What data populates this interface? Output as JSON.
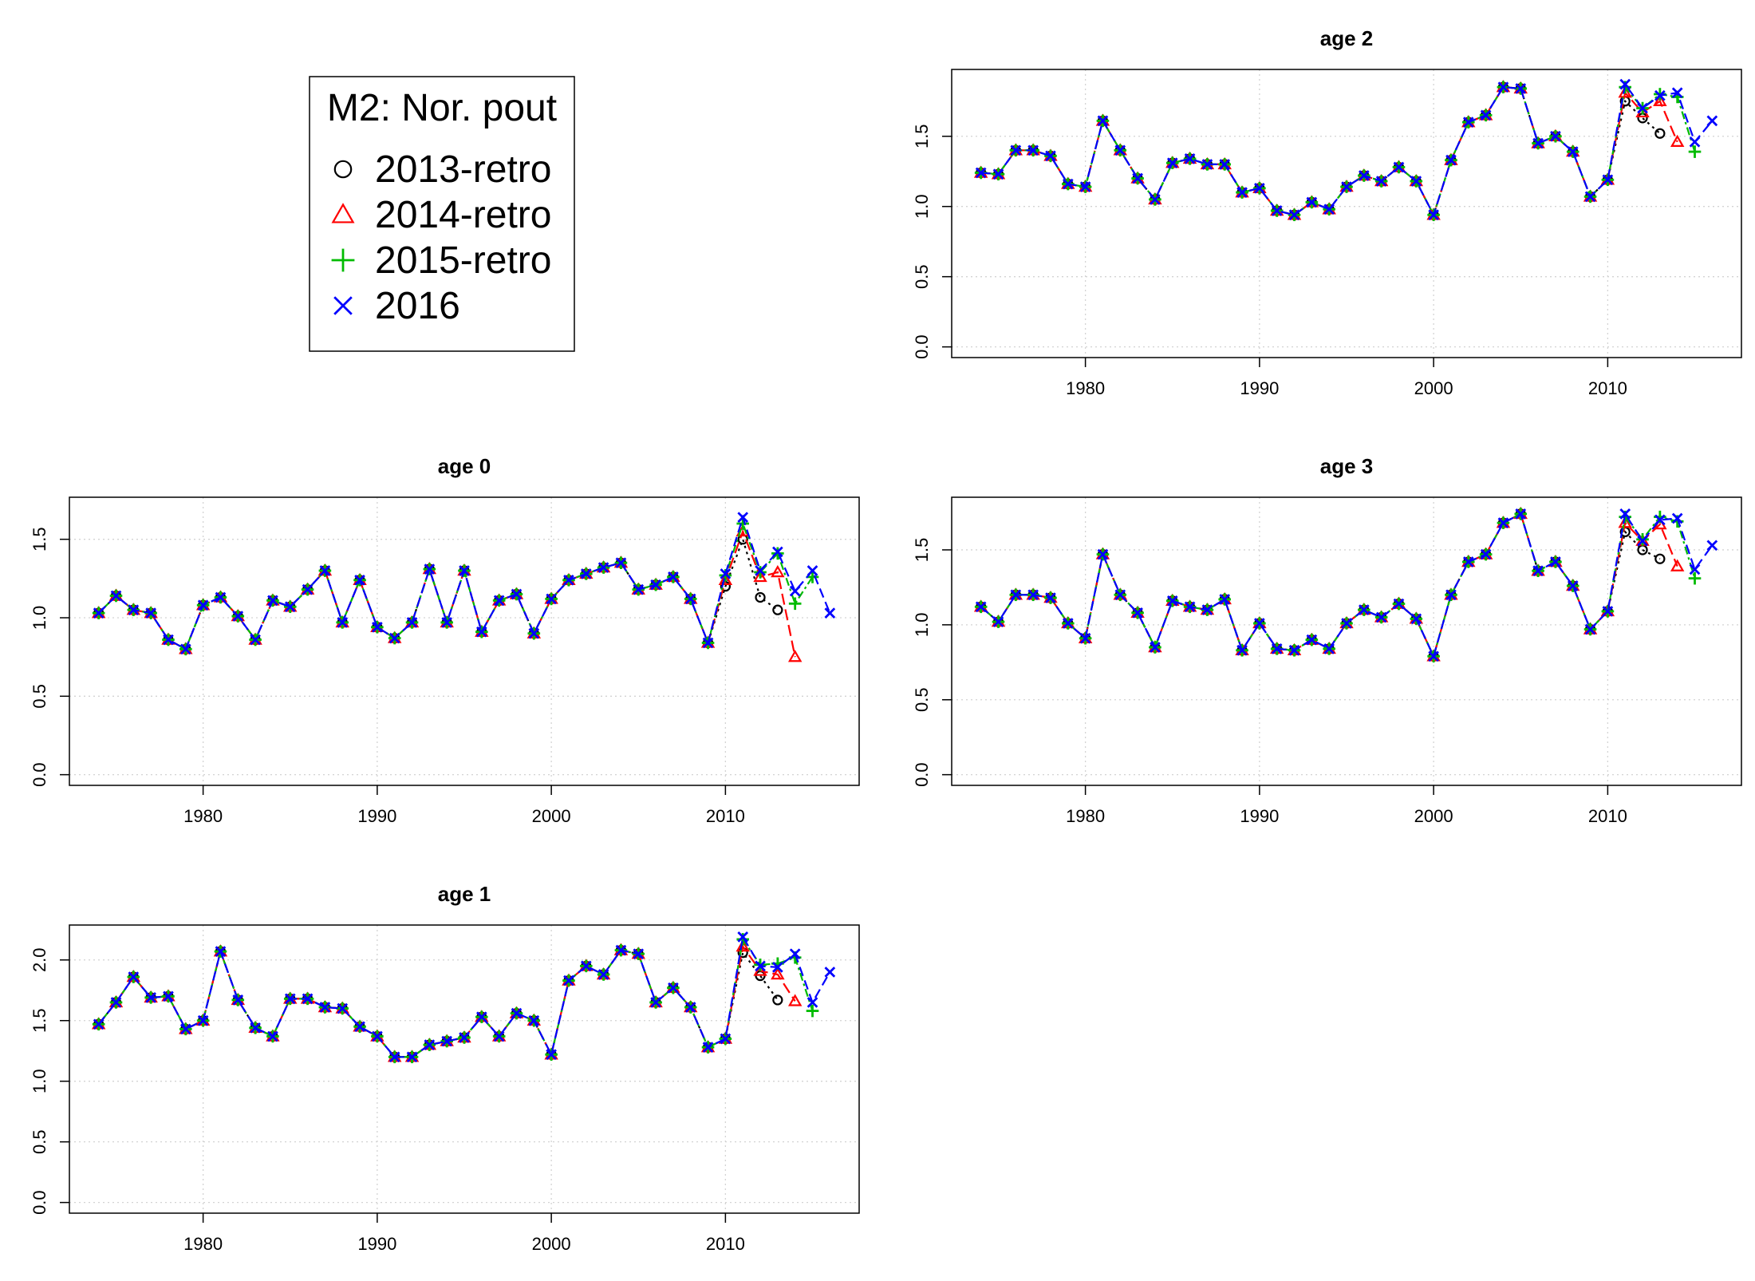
{
  "legend": {
    "title": "M2: Nor. pout",
    "entries": [
      {
        "label": "2013-retro",
        "color": "#000000",
        "marker": "circle"
      },
      {
        "label": "2014-retro",
        "color": "#ff0000",
        "marker": "triangle"
      },
      {
        "label": "2015-retro",
        "color": "#00bb00",
        "marker": "plus"
      },
      {
        "label": "2016",
        "color": "#0000ff",
        "marker": "cross"
      }
    ]
  },
  "chart_data": [
    {
      "type": "line",
      "title": "age 2",
      "xlim": [
        1974,
        2016
      ],
      "ylim": [
        0,
        1.9
      ],
      "xticks": [
        1980,
        1990,
        2000,
        2010
      ],
      "xtick_labels": [
        "1980",
        "1990",
        "2000",
        "2010"
      ],
      "yticks": [
        0,
        0.5,
        1,
        1.5
      ],
      "ytick_labels": [
        "0.0",
        "0.5",
        "1.0",
        "1.5"
      ],
      "grid": true,
      "base": [
        1.24,
        1.23,
        1.4,
        1.4,
        1.36,
        1.16,
        1.14,
        1.61,
        1.4,
        1.2,
        1.05,
        1.31,
        1.34,
        1.3,
        1.3,
        1.1,
        1.13,
        0.97,
        0.94,
        1.03,
        0.98,
        1.14,
        1.22,
        1.18,
        1.28,
        1.18,
        0.94,
        1.33,
        1.6,
        1.65,
        1.85,
        1.84,
        1.45,
        1.5,
        1.39,
        1.07,
        1.19
      ],
      "series": [
        {
          "name": "2013-retro",
          "x": [
            2011,
            2012,
            2013
          ],
          "y": [
            1.75,
            1.63,
            1.52
          ]
        },
        {
          "name": "2014-retro",
          "x": [
            2011,
            2012,
            2013,
            2014
          ],
          "y": [
            1.81,
            1.67,
            1.75,
            1.46
          ]
        },
        {
          "name": "2015-retro",
          "x": [
            2011,
            2012,
            2013,
            2014,
            2015
          ],
          "y": [
            1.85,
            1.7,
            1.8,
            1.78,
            1.39
          ]
        },
        {
          "name": "2016",
          "x": [
            2011,
            2012,
            2013,
            2014,
            2015,
            2016
          ],
          "y": [
            1.87,
            1.7,
            1.79,
            1.81,
            1.46,
            1.61
          ]
        }
      ]
    },
    {
      "type": "line",
      "title": "age 0",
      "xlim": [
        1974,
        2016
      ],
      "ylim": [
        0,
        1.7
      ],
      "xticks": [
        1980,
        1990,
        2000,
        2010
      ],
      "xtick_labels": [
        "1980",
        "1990",
        "2000",
        "2010"
      ],
      "yticks": [
        0,
        0.5,
        1,
        1.5
      ],
      "ytick_labels": [
        "0.0",
        "0.5",
        "1.0",
        "1.5"
      ],
      "grid": true,
      "base": [
        1.03,
        1.14,
        1.05,
        1.03,
        0.86,
        0.8,
        1.08,
        1.13,
        1.01,
        0.86,
        1.11,
        1.07,
        1.18,
        1.3,
        0.97,
        1.24,
        0.94,
        0.87,
        0.97,
        1.31,
        0.97,
        1.3,
        0.91,
        1.11,
        1.15,
        0.9,
        1.12,
        1.24,
        1.28,
        1.32,
        1.35,
        1.18,
        1.21,
        1.26,
        1.12,
        0.84,
        1.2,
        1.5
      ],
      "series": [
        {
          "name": "2013-retro",
          "x": [
            2012,
            2013
          ],
          "y": [
            1.13,
            1.05
          ]
        },
        {
          "name": "2014-retro",
          "x": [
            2010,
            2011,
            2012,
            2013,
            2014
          ],
          "y": [
            1.24,
            1.55,
            1.26,
            1.29,
            0.75
          ]
        },
        {
          "name": "2015-retro",
          "x": [
            2010,
            2011,
            2012,
            2013,
            2014,
            2015
          ],
          "y": [
            1.27,
            1.6,
            1.29,
            1.41,
            1.09,
            1.26
          ]
        },
        {
          "name": "2016",
          "x": [
            2010,
            2011,
            2012,
            2013,
            2014,
            2015,
            2016
          ],
          "y": [
            1.28,
            1.64,
            1.3,
            1.42,
            1.17,
            1.3,
            1.03
          ]
        }
      ]
    },
    {
      "type": "line",
      "title": "age 3",
      "xlim": [
        1974,
        2016
      ],
      "ylim": [
        0,
        1.78
      ],
      "xticks": [
        1980,
        1990,
        2000,
        2010
      ],
      "xtick_labels": [
        "1980",
        "1990",
        "2000",
        "2010"
      ],
      "yticks": [
        0,
        0.5,
        1,
        1.5
      ],
      "ytick_labels": [
        "0.0",
        "0.5",
        "1.0",
        "1.5"
      ],
      "grid": true,
      "base": [
        1.12,
        1.02,
        1.2,
        1.2,
        1.18,
        1.01,
        0.91,
        1.47,
        1.2,
        1.08,
        0.85,
        1.16,
        1.12,
        1.1,
        1.17,
        0.83,
        1.01,
        0.84,
        0.83,
        0.9,
        0.84,
        1.01,
        1.1,
        1.05,
        1.14,
        1.04,
        0.79,
        1.2,
        1.42,
        1.47,
        1.68,
        1.74,
        1.36,
        1.42,
        1.26,
        0.97,
        1.09
      ],
      "series": [
        {
          "name": "2013-retro",
          "x": [
            2011,
            2012,
            2013
          ],
          "y": [
            1.62,
            1.5,
            1.44
          ]
        },
        {
          "name": "2014-retro",
          "x": [
            2011,
            2012,
            2013,
            2014
          ],
          "y": [
            1.68,
            1.56,
            1.67,
            1.39
          ]
        },
        {
          "name": "2015-retro",
          "x": [
            2011,
            2012,
            2013,
            2014,
            2015
          ],
          "y": [
            1.72,
            1.57,
            1.72,
            1.69,
            1.31
          ]
        },
        {
          "name": "2016",
          "x": [
            2011,
            2012,
            2013,
            2014,
            2015,
            2016
          ],
          "y": [
            1.74,
            1.56,
            1.7,
            1.71,
            1.37,
            1.53
          ]
        }
      ]
    },
    {
      "type": "line",
      "title": "age 1",
      "xlim": [
        1974,
        2016
      ],
      "ylim": [
        0,
        2.2
      ],
      "xticks": [
        1980,
        1990,
        2000,
        2010
      ],
      "xtick_labels": [
        "1980",
        "1990",
        "2000",
        "2010"
      ],
      "yticks": [
        0,
        0.5,
        1,
        1.5,
        2
      ],
      "ytick_labels": [
        "0.0",
        "0.5",
        "1.0",
        "1.5",
        "2.0"
      ],
      "grid": true,
      "base": [
        1.47,
        1.65,
        1.86,
        1.69,
        1.7,
        1.43,
        1.5,
        2.07,
        1.67,
        1.44,
        1.37,
        1.68,
        1.68,
        1.61,
        1.6,
        1.45,
        1.37,
        1.2,
        1.2,
        1.3,
        1.33,
        1.36,
        1.53,
        1.37,
        1.56,
        1.5,
        1.22,
        1.83,
        1.95,
        1.88,
        2.08,
        2.05,
        1.65,
        1.77,
        1.61,
        1.28,
        1.35
      ],
      "series": [
        {
          "name": "2013-retro",
          "x": [
            2011,
            2012,
            2013
          ],
          "y": [
            2.06,
            1.87,
            1.67
          ]
        },
        {
          "name": "2014-retro",
          "x": [
            2011,
            2012,
            2013,
            2014
          ],
          "y": [
            2.11,
            1.91,
            1.88,
            1.66
          ]
        },
        {
          "name": "2015-retro",
          "x": [
            2011,
            2012,
            2013,
            2014,
            2015
          ],
          "y": [
            2.17,
            1.96,
            1.97,
            2.02,
            1.58
          ]
        },
        {
          "name": "2016",
          "x": [
            2011,
            2012,
            2013,
            2014,
            2015,
            2016
          ],
          "y": [
            2.19,
            1.95,
            1.94,
            2.05,
            1.65,
            1.9
          ]
        }
      ]
    }
  ]
}
